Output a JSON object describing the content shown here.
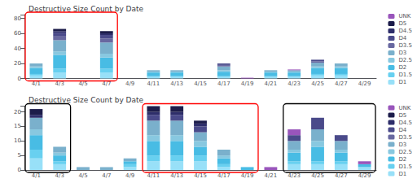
{
  "chart_data": [
    {
      "type": "bar",
      "title": "Destructive Size Count by Date",
      "categories": [
        "4/1",
        "4/3",
        "4/5",
        "4/7",
        "4/9",
        "4/11",
        "4/13",
        "4/15",
        "4/17",
        "4/19",
        "4/21",
        "4/23",
        "4/25",
        "4/27",
        "4/29"
      ],
      "stacked": true,
      "series": [
        {
          "name": "D1",
          "color": "#98e0f8",
          "values": [
            4,
            8,
            0,
            8,
            0,
            2,
            2,
            0,
            2,
            0,
            2,
            2,
            4,
            4,
            0
          ]
        },
        {
          "name": "D1.5",
          "color": "#68d0f0",
          "values": [
            2,
            5,
            0,
            5,
            0,
            1,
            1,
            0,
            1,
            0,
            1,
            1,
            2,
            2,
            0
          ]
        },
        {
          "name": "D2",
          "color": "#48bce4",
          "values": [
            8,
            18,
            0,
            15,
            0,
            5,
            5,
            0,
            6,
            0,
            5,
            5,
            8,
            8,
            0
          ]
        },
        {
          "name": "D2.5",
          "color": "#88c8e0",
          "values": [
            2,
            5,
            0,
            5,
            0,
            1,
            1,
            0,
            2,
            0,
            1,
            1,
            2,
            2,
            0
          ]
        },
        {
          "name": "D3",
          "color": "#7ab0cc",
          "values": [
            4,
            15,
            0,
            15,
            0,
            2,
            2,
            0,
            5,
            0,
            2,
            2,
            5,
            4,
            0
          ]
        },
        {
          "name": "D3.5",
          "color": "#6868a0",
          "values": [
            0,
            5,
            0,
            5,
            0,
            0,
            0,
            0,
            2,
            0,
            0,
            0,
            2,
            0,
            0
          ]
        },
        {
          "name": "D4",
          "color": "#4a4a8a",
          "values": [
            0,
            5,
            0,
            5,
            0,
            0,
            0,
            0,
            2,
            0,
            0,
            0,
            2,
            0,
            0
          ]
        },
        {
          "name": "D4.5",
          "color": "#2e2e6a",
          "values": [
            0,
            2,
            0,
            2,
            0,
            0,
            0,
            0,
            0,
            0,
            0,
            0,
            0,
            0,
            0
          ]
        },
        {
          "name": "D5",
          "color": "#1c1c4a",
          "values": [
            0,
            3,
            0,
            3,
            0,
            0,
            0,
            0,
            0,
            0,
            0,
            0,
            0,
            0,
            0
          ]
        },
        {
          "name": "UNK",
          "color": "#9955bb",
          "values": [
            0,
            0,
            0,
            0,
            0,
            0,
            0,
            0,
            0,
            1,
            0,
            1,
            0,
            0,
            0
          ]
        }
      ],
      "ylim": [
        0,
        85
      ],
      "yticks": [
        0,
        20,
        40,
        60,
        80
      ],
      "grid": false,
      "legend": "upper right",
      "boxes": [
        {
          "from": "4/1",
          "to": "4/7",
          "color": "red"
        }
      ]
    },
    {
      "type": "bar",
      "title": "Destructive Size Count by Date",
      "categories": [
        "4/1",
        "4/3",
        "4/5",
        "4/7",
        "4/9",
        "4/11",
        "4/13",
        "4/15",
        "4/17",
        "4/19",
        "4/21",
        "4/23",
        "4/25",
        "4/27",
        "4/29"
      ],
      "stacked": true,
      "series": [
        {
          "name": "D1",
          "color": "#98e0f8",
          "values": [
            4,
            2,
            0,
            0,
            1,
            3,
            3,
            3,
            1,
            0,
            0,
            2,
            2,
            2,
            1
          ]
        },
        {
          "name": "D1.5",
          "color": "#68d0f0",
          "values": [
            3,
            1,
            0,
            0,
            1,
            2,
            2,
            2,
            1,
            0,
            0,
            1,
            1,
            1,
            0
          ]
        },
        {
          "name": "D2",
          "color": "#48bce4",
          "values": [
            5,
            2,
            0,
            0,
            1,
            5,
            5,
            3,
            2,
            1,
            0,
            3,
            5,
            3,
            1
          ]
        },
        {
          "name": "D2.5",
          "color": "#88c8e0",
          "values": [
            2,
            1,
            0,
            0,
            0,
            2,
            2,
            2,
            1,
            0,
            0,
            1,
            2,
            1,
            0
          ]
        },
        {
          "name": "D3",
          "color": "#7ab0cc",
          "values": [
            4,
            2,
            1,
            1,
            1,
            5,
            5,
            3,
            2,
            0,
            0,
            3,
            4,
            3,
            0
          ]
        },
        {
          "name": "D3.5",
          "color": "#6868a0",
          "values": [
            0,
            0,
            0,
            0,
            0,
            0,
            0,
            0,
            0,
            0,
            0,
            0,
            0,
            0,
            0
          ]
        },
        {
          "name": "D4",
          "color": "#4a4a8a",
          "values": [
            0,
            0,
            0,
            0,
            0,
            2,
            2,
            2,
            0,
            0,
            0,
            2,
            4,
            2,
            0
          ]
        },
        {
          "name": "D4.5",
          "color": "#2e2e6a",
          "values": [
            1,
            0,
            0,
            0,
            0,
            1,
            1,
            1,
            0,
            0,
            0,
            0,
            0,
            0,
            0
          ]
        },
        {
          "name": "D5",
          "color": "#1c1c4a",
          "values": [
            2,
            0,
            0,
            0,
            0,
            2,
            2,
            1,
            0,
            0,
            0,
            0,
            0,
            0,
            0
          ]
        },
        {
          "name": "UNK",
          "color": "#9955bb",
          "values": [
            0,
            0,
            0,
            0,
            0,
            0,
            0,
            0,
            0,
            0,
            1,
            2,
            0,
            0,
            1
          ]
        }
      ],
      "ylim": [
        0,
        22
      ],
      "yticks": [
        0,
        5,
        10,
        15,
        20
      ],
      "grid": false,
      "legend": "upper right",
      "boxes": [
        {
          "from": "4/1",
          "to": "4/3",
          "color": "black"
        },
        {
          "from": "4/11",
          "to": "4/19",
          "color": "red"
        },
        {
          "from": "4/23",
          "to": "4/29",
          "color": "black"
        }
      ]
    }
  ]
}
